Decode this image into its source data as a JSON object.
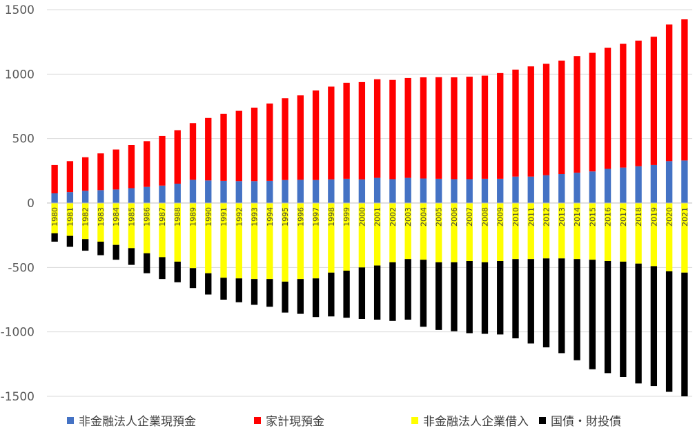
{
  "chart_data": {
    "type": "bar",
    "stacked": true,
    "title": "",
    "xlabel": "",
    "ylabel": "",
    "ylim": [
      -1500,
      1500
    ],
    "yticks": [
      -1500,
      -1000,
      -500,
      0,
      500,
      1000,
      1500
    ],
    "grid": true,
    "legend": "bottom",
    "categories": [
      "1980",
      "1981",
      "1982",
      "1983",
      "1984",
      "1985",
      "1986",
      "1987",
      "1988",
      "1989",
      "1990",
      "1991",
      "1992",
      "1993",
      "1994",
      "1995",
      "1996",
      "1997",
      "1998",
      "1999",
      "2000",
      "2001",
      "2002",
      "2003",
      "2004",
      "2005",
      "2006",
      "2007",
      "2008",
      "2009",
      "2010",
      "2011",
      "2012",
      "2013",
      "2014",
      "2015",
      "2016",
      "2017",
      "2018",
      "2019",
      "2020",
      "2021"
    ],
    "series": [
      {
        "name": "非金融法人企業現預金",
        "color": "#4472C4",
        "values": [
          75,
          85,
          95,
          100,
          105,
          115,
          125,
          135,
          150,
          180,
          175,
          172,
          170,
          170,
          172,
          178,
          180,
          178,
          183,
          188,
          183,
          195,
          185,
          195,
          190,
          188,
          185,
          185,
          188,
          188,
          205,
          205,
          215,
          225,
          235,
          245,
          265,
          275,
          285,
          295,
          325,
          330
        ]
      },
      {
        "name": "家計現預金",
        "color": "#FF0000",
        "values": [
          220,
          240,
          260,
          285,
          310,
          335,
          355,
          385,
          415,
          440,
          485,
          520,
          545,
          570,
          600,
          635,
          655,
          695,
          720,
          745,
          755,
          765,
          770,
          775,
          785,
          788,
          790,
          795,
          800,
          820,
          830,
          855,
          865,
          880,
          905,
          920,
          940,
          960,
          975,
          995,
          1060,
          1095
        ]
      },
      {
        "name": "非金融法人企業借入",
        "color": "#FFFF00",
        "values": [
          -235,
          -255,
          -280,
          -300,
          -325,
          -350,
          -390,
          -420,
          -455,
          -505,
          -545,
          -580,
          -585,
          -590,
          -590,
          -610,
          -590,
          -585,
          -540,
          -525,
          -500,
          -485,
          -460,
          -435,
          -440,
          -460,
          -460,
          -450,
          -460,
          -450,
          -435,
          -435,
          -430,
          -430,
          -435,
          -440,
          -450,
          -455,
          -470,
          -490,
          -530,
          -540
        ]
      },
      {
        "name": "国債・財投債",
        "color": "#000000",
        "values": [
          -65,
          -85,
          -90,
          -105,
          -115,
          -130,
          -155,
          -170,
          -160,
          -155,
          -165,
          -170,
          -185,
          -200,
          -215,
          -240,
          -270,
          -300,
          -340,
          -365,
          -400,
          -420,
          -455,
          -470,
          -520,
          -525,
          -535,
          -560,
          -555,
          -570,
          -615,
          -655,
          -690,
          -735,
          -785,
          -850,
          -870,
          -895,
          -930,
          -930,
          -935,
          -960
        ]
      }
    ]
  }
}
